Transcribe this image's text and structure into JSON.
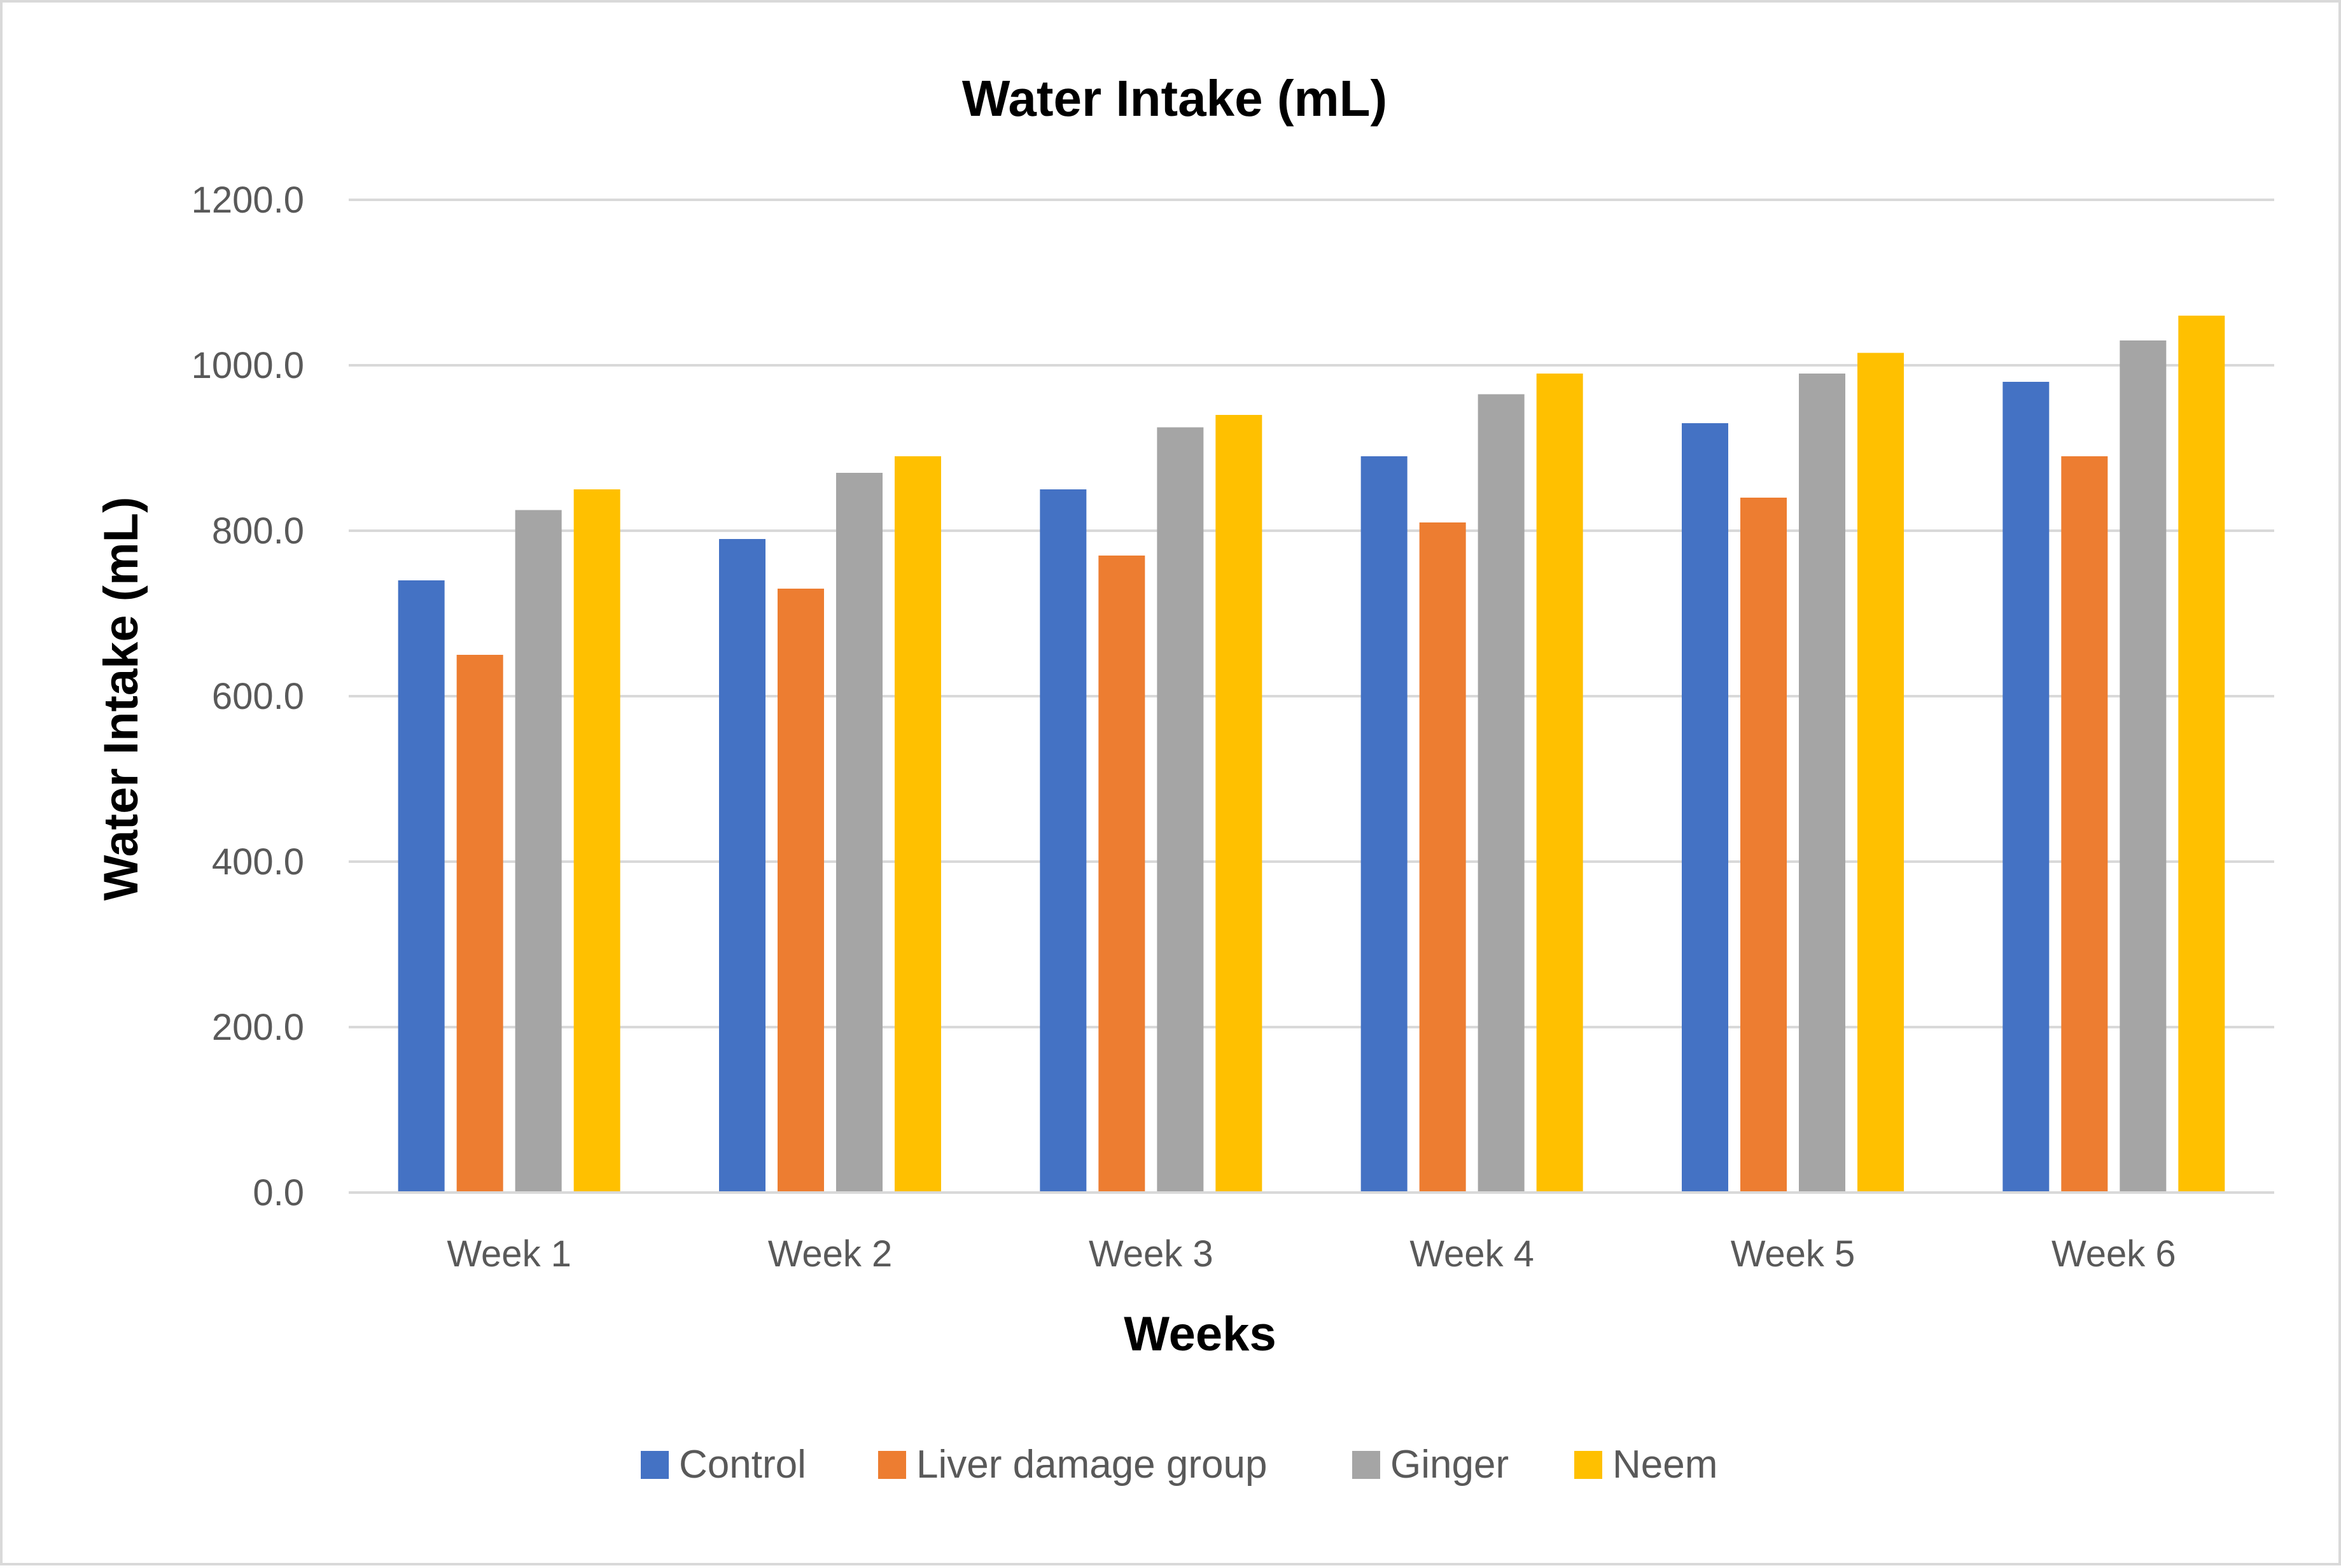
{
  "chart_data": {
    "type": "bar",
    "title": "Water Intake (mL)",
    "xlabel": "Weeks",
    "ylabel": "Water Intake (mL)",
    "categories": [
      "Week 1",
      "Week 2",
      "Week 3",
      "Week 4",
      "Week 5",
      "Week 6"
    ],
    "series": [
      {
        "name": "Control",
        "color": "#4472c4",
        "values": [
          740,
          790,
          850,
          890,
          930,
          980
        ]
      },
      {
        "name": "Liver damage group",
        "color": "#ed7d31",
        "values": [
          650,
          730,
          770,
          810,
          840,
          890
        ]
      },
      {
        "name": "Ginger",
        "color": "#a5a5a5",
        "values": [
          825,
          870,
          925,
          965,
          990,
          1030
        ]
      },
      {
        "name": "Neem",
        "color": "#ffc000",
        "values": [
          850,
          890,
          940,
          990,
          1015,
          1060
        ]
      }
    ],
    "ylim": [
      0,
      1200
    ],
    "yticks": [
      0,
      200,
      400,
      600,
      800,
      1000,
      1200
    ],
    "ytick_labels": [
      "0.0",
      "200.0",
      "400.0",
      "600.0",
      "800.0",
      "1000.0",
      "1200.0"
    ],
    "grid": true,
    "legend_position": "bottom"
  }
}
